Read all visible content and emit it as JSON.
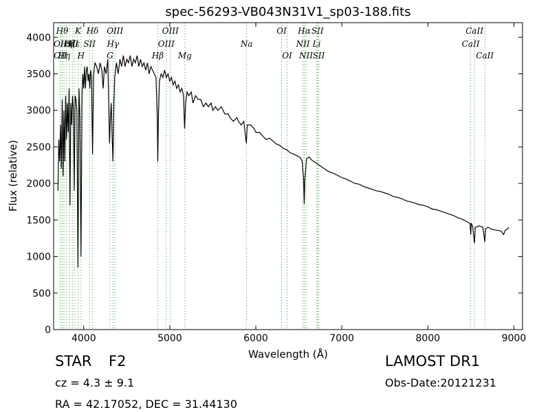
{
  "chart_data": {
    "type": "line",
    "title": "spec-56293-VB043N31V1_sp03-188.fits",
    "xlabel": "Wavelength (Å)",
    "ylabel": "Flux (relative)",
    "xlim": [
      3650,
      9100
    ],
    "ylim": [
      0,
      4200
    ],
    "xticks": [
      4000,
      5000,
      6000,
      7000,
      8000,
      9000
    ],
    "yticks": [
      0,
      500,
      1000,
      1500,
      2000,
      2500,
      3000,
      3500,
      4000
    ],
    "grid": false,
    "series_color": "#000000",
    "line_marker_color": "#2ca02c",
    "spectrum": [
      [
        3700,
        1900
      ],
      [
        3710,
        2600
      ],
      [
        3720,
        2300
      ],
      [
        3730,
        2800
      ],
      [
        3740,
        2200
      ],
      [
        3750,
        3150
      ],
      [
        3760,
        2100
      ],
      [
        3770,
        3000
      ],
      [
        3780,
        2300
      ],
      [
        3790,
        3200
      ],
      [
        3800,
        2600
      ],
      [
        3810,
        3100
      ],
      [
        3820,
        2700
      ],
      [
        3830,
        3300
      ],
      [
        3840,
        1700
      ],
      [
        3850,
        3100
      ],
      [
        3860,
        2800
      ],
      [
        3870,
        3200
      ],
      [
        3880,
        3000
      ],
      [
        3890,
        1900
      ],
      [
        3900,
        3200
      ],
      [
        3910,
        3150
      ],
      [
        3920,
        3000
      ],
      [
        3933,
        850
      ],
      [
        3945,
        3300
      ],
      [
        3955,
        2900
      ],
      [
        3968,
        1000
      ],
      [
        3980,
        3200
      ],
      [
        3990,
        3500
      ],
      [
        4000,
        3300
      ],
      [
        4010,
        3600
      ],
      [
        4020,
        3300
      ],
      [
        4030,
        3550
      ],
      [
        4040,
        3600
      ],
      [
        4050,
        3400
      ],
      [
        4060,
        3500
      ],
      [
        4070,
        3300
      ],
      [
        4080,
        3550
      ],
      [
        4090,
        3450
      ],
      [
        4102,
        2400
      ],
      [
        4115,
        3500
      ],
      [
        4130,
        3650
      ],
      [
        4150,
        3600
      ],
      [
        4170,
        3500
      ],
      [
        4190,
        3650
      ],
      [
        4210,
        3550
      ],
      [
        4226,
        3300
      ],
      [
        4240,
        3600
      ],
      [
        4260,
        3500
      ],
      [
        4280,
        3700
      ],
      [
        4300,
        2550
      ],
      [
        4310,
        2900
      ],
      [
        4320,
        3100
      ],
      [
        4330,
        2650
      ],
      [
        4340,
        2300
      ],
      [
        4350,
        3100
      ],
      [
        4360,
        3450
      ],
      [
        4380,
        3650
      ],
      [
        4400,
        3500
      ],
      [
        4420,
        3700
      ],
      [
        4440,
        3600
      ],
      [
        4460,
        3750
      ],
      [
        4480,
        3600
      ],
      [
        4500,
        3700
      ],
      [
        4520,
        3650
      ],
      [
        4540,
        3750
      ],
      [
        4560,
        3600
      ],
      [
        4580,
        3700
      ],
      [
        4600,
        3650
      ],
      [
        4620,
        3750
      ],
      [
        4640,
        3600
      ],
      [
        4660,
        3700
      ],
      [
        4680,
        3600
      ],
      [
        4700,
        3650
      ],
      [
        4720,
        3550
      ],
      [
        4740,
        3650
      ],
      [
        4760,
        3500
      ],
      [
        4780,
        3600
      ],
      [
        4800,
        3550
      ],
      [
        4820,
        3500
      ],
      [
        4840,
        3450
      ],
      [
        4855,
        2900
      ],
      [
        4861,
        2300
      ],
      [
        4868,
        2900
      ],
      [
        4880,
        3400
      ],
      [
        4900,
        3500
      ],
      [
        4920,
        3450
      ],
      [
        4940,
        3550
      ],
      [
        4960,
        3450
      ],
      [
        4980,
        3500
      ],
      [
        5000,
        3400
      ],
      [
        5020,
        3450
      ],
      [
        5040,
        3350
      ],
      [
        5060,
        3400
      ],
      [
        5080,
        3300
      ],
      [
        5100,
        3350
      ],
      [
        5120,
        3250
      ],
      [
        5140,
        3300
      ],
      [
        5160,
        3200
      ],
      [
        5172,
        2750
      ],
      [
        5184,
        3100
      ],
      [
        5200,
        3250
      ],
      [
        5220,
        3200
      ],
      [
        5250,
        3250
      ],
      [
        5270,
        3100
      ],
      [
        5300,
        3200
      ],
      [
        5330,
        3150
      ],
      [
        5360,
        3150
      ],
      [
        5390,
        3050
      ],
      [
        5420,
        3100
      ],
      [
        5450,
        3050
      ],
      [
        5480,
        3100
      ],
      [
        5500,
        3000
      ],
      [
        5530,
        3050
      ],
      [
        5560,
        3000
      ],
      [
        5600,
        3050
      ],
      [
        5640,
        2950
      ],
      [
        5680,
        2950
      ],
      [
        5700,
        2900
      ],
      [
        5740,
        2850
      ],
      [
        5780,
        2900
      ],
      [
        5800,
        2850
      ],
      [
        5830,
        2800
      ],
      [
        5860,
        2850
      ],
      [
        5890,
        2550
      ],
      [
        5900,
        2800
      ],
      [
        5940,
        2800
      ],
      [
        5980,
        2750
      ],
      [
        6000,
        2700
      ],
      [
        6040,
        2700
      ],
      [
        6080,
        2650
      ],
      [
        6120,
        2600
      ],
      [
        6160,
        2620
      ],
      [
        6200,
        2580
      ],
      [
        6240,
        2540
      ],
      [
        6280,
        2520
      ],
      [
        6320,
        2480
      ],
      [
        6360,
        2460
      ],
      [
        6400,
        2420
      ],
      [
        6440,
        2400
      ],
      [
        6480,
        2380
      ],
      [
        6520,
        2350
      ],
      [
        6540,
        2300
      ],
      [
        6556,
        2050
      ],
      [
        6563,
        1720
      ],
      [
        6570,
        2050
      ],
      [
        6590,
        2340
      ],
      [
        6620,
        2360
      ],
      [
        6650,
        2320
      ],
      [
        6700,
        2280
      ],
      [
        6750,
        2240
      ],
      [
        6800,
        2200
      ],
      [
        6850,
        2160
      ],
      [
        6900,
        2140
      ],
      [
        6950,
        2110
      ],
      [
        7000,
        2080
      ],
      [
        7050,
        2060
      ],
      [
        7100,
        2030
      ],
      [
        7150,
        2000
      ],
      [
        7200,
        1990
      ],
      [
        7250,
        1960
      ],
      [
        7300,
        1940
      ],
      [
        7350,
        1920
      ],
      [
        7400,
        1900
      ],
      [
        7450,
        1890
      ],
      [
        7500,
        1870
      ],
      [
        7550,
        1850
      ],
      [
        7600,
        1820
      ],
      [
        7650,
        1810
      ],
      [
        7700,
        1790
      ],
      [
        7750,
        1760
      ],
      [
        7800,
        1750
      ],
      [
        7850,
        1730
      ],
      [
        7900,
        1710
      ],
      [
        7950,
        1700
      ],
      [
        8000,
        1680
      ],
      [
        8050,
        1650
      ],
      [
        8100,
        1640
      ],
      [
        8150,
        1620
      ],
      [
        8200,
        1600
      ],
      [
        8250,
        1580
      ],
      [
        8300,
        1560
      ],
      [
        8350,
        1530
      ],
      [
        8400,
        1510
      ],
      [
        8450,
        1480
      ],
      [
        8490,
        1450
      ],
      [
        8498,
        1300
      ],
      [
        8505,
        1450
      ],
      [
        8520,
        1420
      ],
      [
        8542,
        1180
      ],
      [
        8550,
        1400
      ],
      [
        8600,
        1420
      ],
      [
        8640,
        1400
      ],
      [
        8662,
        1200
      ],
      [
        8670,
        1380
      ],
      [
        8700,
        1400
      ],
      [
        8750,
        1370
      ],
      [
        8800,
        1360
      ],
      [
        8850,
        1350
      ],
      [
        8880,
        1300
      ],
      [
        8900,
        1360
      ],
      [
        8930,
        1380
      ],
      [
        8940,
        1400
      ]
    ],
    "line_markers": [
      {
        "w": 3727,
        "label": "OII",
        "row": 2
      },
      {
        "w": 3729,
        "label": "OII",
        "row": 3
      },
      {
        "w": 3750,
        "label": "Hθ",
        "row": 1
      },
      {
        "w": 3771,
        "label": "Hη",
        "row": 3
      },
      {
        "w": 3798,
        "label": "Hη",
        "row": 2
      },
      {
        "w": 3835,
        "label": "Hζ",
        "row": 2
      },
      {
        "w": 3868,
        "label": "SII",
        "row": 2
      },
      {
        "w": 3889,
        "label": "Hε",
        "row": 2
      },
      {
        "w": 3934,
        "label": "K",
        "row": 1
      },
      {
        "w": 3969,
        "label": "H",
        "row": 3
      },
      {
        "w": 4068,
        "label": "SII",
        "row": 2
      },
      {
        "w": 4102,
        "label": "Hδ",
        "row": 1
      },
      {
        "w": 4305,
        "label": "G",
        "row": 3
      },
      {
        "w": 4340,
        "label": "Hγ",
        "row": 2
      },
      {
        "w": 4363,
        "label": "OIII",
        "row": 1
      },
      {
        "w": 4861,
        "label": "Hβ",
        "row": 3
      },
      {
        "w": 4959,
        "label": "OIII",
        "row": 2
      },
      {
        "w": 5007,
        "label": "OIII",
        "row": 1
      },
      {
        "w": 5175,
        "label": "Mg",
        "row": 3
      },
      {
        "w": 5893,
        "label": "Na",
        "row": 2
      },
      {
        "w": 6300,
        "label": "OI",
        "row": 1
      },
      {
        "w": 6364,
        "label": "OI",
        "row": 3
      },
      {
        "w": 6548,
        "label": "NII",
        "row": 2
      },
      {
        "w": 6563,
        "label": "Hα",
        "row": 1
      },
      {
        "w": 6584,
        "label": "NII",
        "row": 3
      },
      {
        "w": 6707,
        "label": "Li",
        "row": 2
      },
      {
        "w": 6717,
        "label": "SII",
        "row": 1
      },
      {
        "w": 6731,
        "label": "SII",
        "row": 3
      },
      {
        "w": 8498,
        "label": "CaII",
        "row": 2
      },
      {
        "w": 8542,
        "label": "CaII",
        "row": 1
      },
      {
        "w": 8662,
        "label": "CaII",
        "row": 3
      }
    ]
  },
  "info": {
    "object_class": "STAR",
    "subclass": "F2",
    "redshift": "cz = 4.3 ± 9.1",
    "coords": "RA = 42.17052, DEC = 31.44130",
    "survey": "LAMOST DR1",
    "obs_date": "Obs-Date:20121231"
  }
}
